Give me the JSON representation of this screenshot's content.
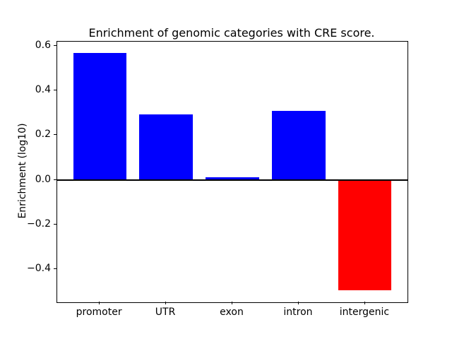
{
  "figure": {
    "background_color": "#ffffff",
    "text_color": "#000000"
  },
  "chart_data": {
    "type": "bar",
    "title": "Enrichment of genomic categories with CRE score.",
    "xlabel": "",
    "ylabel": "Enrichment (log10)",
    "categories": [
      "promoter",
      "UTR",
      "exon",
      "intron",
      "intergenic"
    ],
    "values": [
      0.57,
      0.295,
      0.01,
      0.31,
      -0.495
    ],
    "bar_colors": [
      "#0000ff",
      "#0000ff",
      "#0000ff",
      "#0000ff",
      "#ff0000"
    ],
    "positive_color": "#0000ff",
    "negative_color": "#ff0000",
    "ylim": [
      -0.55,
      0.62
    ],
    "xlim": [
      -0.64,
      4.64
    ],
    "x_positions": [
      0,
      1,
      2,
      3,
      4
    ],
    "bar_width_fraction": 0.8,
    "yticks": [
      {
        "value": 0.6,
        "label": "0.6"
      },
      {
        "value": 0.4,
        "label": "0.4"
      },
      {
        "value": 0.2,
        "label": "0.2"
      },
      {
        "value": 0.0,
        "label": "0.0"
      },
      {
        "value": -0.2,
        "label": "−0.2"
      },
      {
        "value": -0.4,
        "label": "−0.4"
      }
    ],
    "zero_line": {
      "show": true,
      "color": "#000000"
    },
    "grid": false,
    "legend_position": "none",
    "axes_color": "#000000"
  }
}
